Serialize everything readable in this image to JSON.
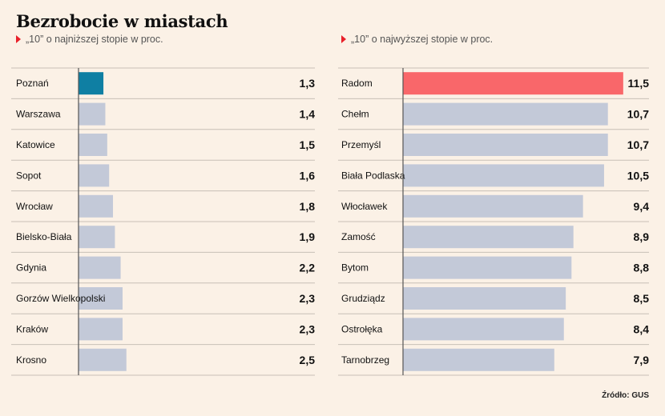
{
  "title": "Bezrobocie w miastach",
  "source": "Źródło: GUS",
  "colors": {
    "bar_default": "#c3c9d8",
    "highlight_low": "#0f7fa3",
    "highlight_high": "#f9676a",
    "grid": "#c8c0b6",
    "axis": "#555555",
    "subtitle_marker": "#e8202a"
  },
  "chart_data": [
    {
      "type": "bar",
      "orientation": "horizontal",
      "subtitle": "„10” o najniższej stopie w proc.",
      "categories": [
        "Poznań",
        "Warszawa",
        "Katowice",
        "Sopot",
        "Wrocław",
        "Bielsko-Biała",
        "Gdynia",
        "Gorzów Wielkopolski",
        "Kraków",
        "Krosno"
      ],
      "values": [
        1.3,
        1.4,
        1.5,
        1.6,
        1.8,
        1.9,
        2.2,
        2.3,
        2.3,
        2.5
      ],
      "value_labels": [
        "1,3",
        "1,4",
        "1,5",
        "1,6",
        "1,8",
        "1,9",
        "2,2",
        "2,3",
        "2,3",
        "2,5"
      ],
      "highlight_index": 0,
      "xlim": [
        0,
        11.5
      ]
    },
    {
      "type": "bar",
      "orientation": "horizontal",
      "subtitle": "„10” o najwyższej stopie w proc.",
      "categories": [
        "Radom",
        "Chełm",
        "Przemyśl",
        "Biała Podlaska",
        "Włocławek",
        "Zamość",
        "Bytom",
        "Grudziądz",
        "Ostrołęka",
        "Tarnobrzeg"
      ],
      "values": [
        11.5,
        10.7,
        10.7,
        10.5,
        9.4,
        8.9,
        8.8,
        8.5,
        8.4,
        7.9
      ],
      "value_labels": [
        "11,5",
        "10,7",
        "10,7",
        "10,5",
        "9,4",
        "8,9",
        "8,8",
        "8,5",
        "8,4",
        "7,9"
      ],
      "highlight_index": 0,
      "xlim": [
        0,
        11.5
      ]
    }
  ]
}
